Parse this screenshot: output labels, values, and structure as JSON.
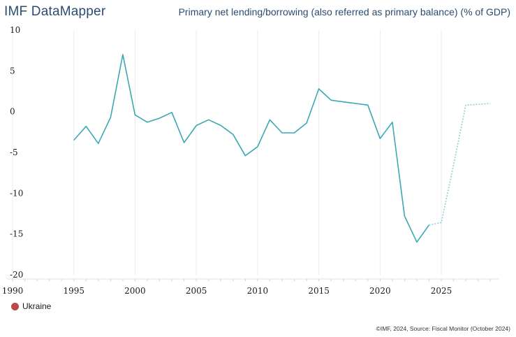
{
  "header": {
    "brand": "IMF DataMapper",
    "title": "Primary net lending/borrowing (also referred as primary balance) (% of GDP)"
  },
  "legend": {
    "items": [
      {
        "label": "Ukraine",
        "color": "#b94a4a"
      }
    ]
  },
  "footer": {
    "source": "©IMF, 2024, Source: Fiscal Monitor (October 2024)"
  },
  "chart_data": {
    "type": "line",
    "title": "Primary net lending/borrowing (also referred as primary balance) (% of GDP)",
    "xlabel": "",
    "ylabel": "",
    "xlim": [
      1990,
      2029.5
    ],
    "ylim": [
      -20,
      10
    ],
    "xticks": [
      1990,
      1995,
      2000,
      2005,
      2010,
      2015,
      2020,
      2025
    ],
    "yticks": [
      10,
      5,
      0,
      -5,
      -10,
      -15,
      -20
    ],
    "line_color": "#3aa9b3",
    "series": [
      {
        "name": "Ukraine",
        "segment": "actual",
        "x": [
          1995,
          1996,
          1997,
          1998,
          1999,
          2000,
          2001,
          2002,
          2003,
          2004,
          2005,
          2006,
          2007,
          2008,
          2009,
          2010,
          2011,
          2012,
          2013,
          2014,
          2015,
          2016,
          2017,
          2018,
          2019,
          2020,
          2021,
          2022,
          2023,
          2024
        ],
        "values": [
          -3.5,
          -1.8,
          -3.9,
          -0.7,
          7.0,
          -0.4,
          -1.3,
          -0.8,
          -0.1,
          -3.8,
          -1.7,
          -1.0,
          -1.7,
          -2.8,
          -5.4,
          -4.3,
          -1.0,
          -2.6,
          -2.6,
          -1.4,
          2.8,
          1.4,
          1.2,
          1.0,
          0.8,
          -3.3,
          -1.3,
          -12.8,
          -16.0,
          -13.9
        ]
      },
      {
        "name": "Ukraine",
        "segment": "projection",
        "x": [
          2024,
          2025,
          2026,
          2027,
          2028,
          2029
        ],
        "values": [
          -13.9,
          -13.6,
          -6.5,
          0.8,
          0.9,
          1.0
        ]
      }
    ]
  }
}
